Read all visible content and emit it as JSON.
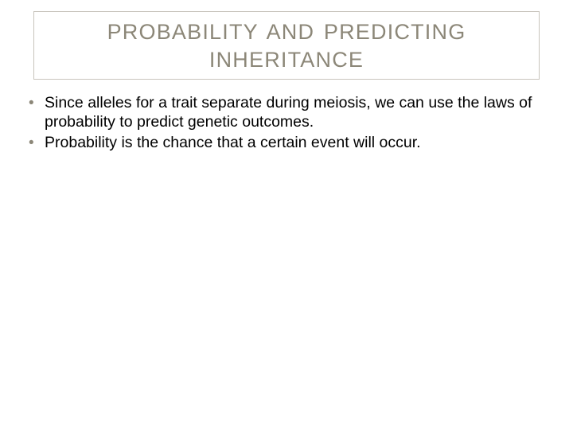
{
  "slide": {
    "title": "PROBABILITY AND PREDICTING INHERITANCE",
    "bullets": [
      "Since alleles for a trait separate during meiosis, we can use the laws of probability to predict genetic outcomes.",
      "Probability is the chance that a certain event will occur."
    ],
    "styling": {
      "background_color": "#ffffff",
      "title_border_color": "#c8c4bc",
      "title_text_color": "#8c8778",
      "title_fontsize": 27,
      "title_letter_spacing": 1.2,
      "body_text_color": "#000000",
      "body_fontsize": 19.5,
      "bullet_marker_color": "#8c8778",
      "slide_width": 720,
      "slide_height": 540
    }
  }
}
